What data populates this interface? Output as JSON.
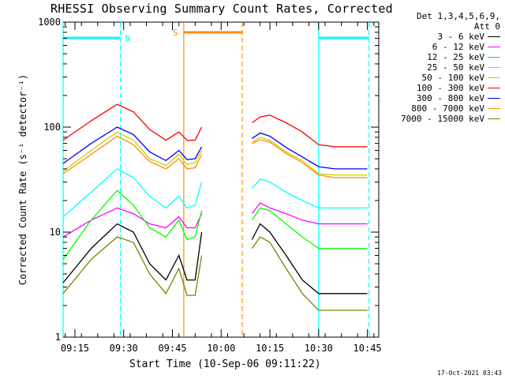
{
  "header": {
    "title": "RHESSI Observing Summary Count Rates, Corrected",
    "date_stamp": "17-Oct-2021 03:43"
  },
  "legend": {
    "header_line1": "Det 1,3,4,5,6,9,",
    "header_line2": "Att 0"
  },
  "chart_data": {
    "type": "line",
    "title": "RHESSI Observing Summary Count Rates, Corrected",
    "xlabel": "Start Time (10-Sep-06 09:11:22)",
    "ylabel": "Corrected Count Rate (s⁻¹ detector⁻¹)",
    "y_scale": "log",
    "ylim": [
      1,
      1000
    ],
    "xlim": [
      "09:11:22",
      "10:48:30"
    ],
    "y_ticks": [
      "1",
      "10",
      "100",
      "1000"
    ],
    "x_ticks": [
      "09:15",
      "09:30",
      "09:45",
      "10:00",
      "10:15",
      "10:30",
      "10:45"
    ],
    "legend_position": "right",
    "grid": false,
    "segments": [
      [
        "09:11:22",
        "09:54:00"
      ],
      [
        "10:09:30",
        "10:45:00"
      ]
    ],
    "series": [
      {
        "name": "3 - 6 keV",
        "color": "#000000",
        "x": [
          "09:11:22",
          "09:20:00",
          "09:28:00",
          "09:33:00",
          "09:38:00",
          "09:43:00",
          "09:47:00",
          "09:49:30",
          "09:52:00",
          "09:54:00",
          "09:09:30",
          "10:09:30",
          "10:12:00",
          "10:15:00",
          "10:20:00",
          "10:25:00",
          "10:30:00",
          "10:35:00",
          "10:40:00",
          "10:45:00"
        ],
        "values": [
          3.3,
          7,
          12,
          10,
          5,
          3.5,
          6,
          3.5,
          3.5,
          10,
          null,
          8.5,
          12,
          10,
          6,
          3.5,
          2.6,
          2.6,
          2.6,
          2.6
        ]
      },
      {
        "name": "6 - 12 keV",
        "color": "#ff00ff",
        "x": [
          "09:11:22",
          "09:20:00",
          "09:28:00",
          "09:33:00",
          "09:38:00",
          "09:43:00",
          "09:47:00",
          "09:49:30",
          "09:52:00",
          "09:54:00",
          "09:09:30",
          "10:09:30",
          "10:12:00",
          "10:15:00",
          "10:20:00",
          "10:25:00",
          "10:30:00",
          "10:35:00",
          "10:40:00",
          "10:45:00"
        ],
        "values": [
          9,
          13,
          17,
          15,
          12,
          11,
          14,
          11,
          11,
          15,
          null,
          15,
          19,
          17,
          15,
          13,
          12,
          12,
          12,
          12
        ]
      },
      {
        "name": "12 - 25 keV",
        "color": "#00ff00",
        "x": [
          "09:11:22",
          "09:20:00",
          "09:28:00",
          "09:33:00",
          "09:38:00",
          "09:43:00",
          "09:47:00",
          "09:49:30",
          "09:52:00",
          "09:54:00",
          "09:09:30",
          "10:09:30",
          "10:12:00",
          "10:15:00",
          "10:20:00",
          "10:25:00",
          "10:30:00",
          "10:35:00",
          "10:40:00",
          "10:45:00"
        ],
        "values": [
          5.5,
          13,
          25,
          18,
          11,
          9,
          13,
          8.5,
          9,
          16,
          null,
          13,
          17,
          16,
          12,
          9,
          7,
          7,
          7,
          7
        ]
      },
      {
        "name": "25 - 50 keV",
        "color": "#00ffff",
        "x": [
          "09:11:22",
          "09:20:00",
          "09:28:00",
          "09:33:00",
          "09:38:00",
          "09:43:00",
          "09:47:00",
          "09:49:30",
          "09:52:00",
          "09:54:00",
          "09:09:30",
          "10:09:30",
          "10:12:00",
          "10:15:00",
          "10:20:00",
          "10:25:00",
          "10:30:00",
          "10:35:00",
          "10:40:00",
          "10:45:00"
        ],
        "values": [
          14,
          24,
          40,
          33,
          22,
          17,
          22,
          17,
          18,
          30,
          null,
          26,
          32,
          30,
          24,
          20,
          17,
          17,
          17,
          17
        ]
      },
      {
        "name": "50 - 100 keV",
        "color": "#cccc00",
        "x": [
          "09:11:22",
          "09:20:00",
          "09:28:00",
          "09:33:00",
          "09:38:00",
          "09:43:00",
          "09:47:00",
          "09:49:30",
          "09:52:00",
          "09:54:00",
          "09:09:30",
          "10:09:30",
          "10:12:00",
          "10:15:00",
          "10:20:00",
          "10:25:00",
          "10:30:00",
          "10:35:00",
          "10:40:00",
          "10:45:00"
        ],
        "values": [
          38,
          60,
          90,
          75,
          50,
          43,
          55,
          44,
          46,
          60,
          null,
          72,
          80,
          75,
          58,
          48,
          36,
          35,
          35,
          35
        ]
      },
      {
        "name": "100 - 300 keV",
        "color": "#ff0000",
        "x": [
          "09:11:22",
          "09:20:00",
          "09:28:00",
          "09:33:00",
          "09:38:00",
          "09:43:00",
          "09:47:00",
          "09:49:30",
          "09:52:00",
          "09:54:00",
          "09:09:30",
          "10:09:30",
          "10:12:00",
          "10:15:00",
          "10:20:00",
          "10:25:00",
          "10:30:00",
          "10:35:00",
          "10:40:00",
          "10:45:00"
        ],
        "values": [
          75,
          115,
          165,
          140,
          95,
          75,
          90,
          75,
          75,
          100,
          null,
          110,
          125,
          130,
          110,
          90,
          68,
          65,
          65,
          65
        ]
      },
      {
        "name": "300 - 800 keV",
        "color": "#0000ff",
        "x": [
          "09:11:22",
          "09:20:00",
          "09:28:00",
          "09:33:00",
          "09:38:00",
          "09:43:00",
          "09:47:00",
          "09:49:30",
          "09:52:00",
          "09:54:00",
          "09:09:30",
          "10:09:30",
          "10:12:00",
          "10:15:00",
          "10:20:00",
          "10:25:00",
          "10:30:00",
          "10:35:00",
          "10:40:00",
          "10:45:00"
        ],
        "values": [
          45,
          70,
          100,
          85,
          58,
          48,
          60,
          49,
          50,
          65,
          null,
          78,
          88,
          82,
          64,
          52,
          42,
          40,
          40,
          40
        ]
      },
      {
        "name": "800 - 7000 keV",
        "color": "#ff8c00",
        "x": [
          "09:11:22",
          "09:20:00",
          "09:28:00",
          "09:33:00",
          "09:38:00",
          "09:43:00",
          "09:47:00",
          "09:49:30",
          "09:52:00",
          "09:54:00",
          "09:09:30",
          "10:09:30",
          "10:12:00",
          "10:15:00",
          "10:20:00",
          "10:25:00",
          "10:30:00",
          "10:35:00",
          "10:40:00",
          "10:45:00"
        ],
        "values": [
          36,
          55,
          82,
          68,
          47,
          40,
          50,
          40,
          41,
          55,
          null,
          70,
          76,
          72,
          56,
          46,
          35,
          33,
          33,
          33
        ]
      },
      {
        "name": "7000 - 15000 keV",
        "color": "#808000",
        "x": [
          "09:11:22",
          "09:20:00",
          "09:28:00",
          "09:33:00",
          "09:38:00",
          "09:43:00",
          "09:47:00",
          "09:49:30",
          "09:52:00",
          "09:54:00",
          "09:09:30",
          "10:09:30",
          "10:12:00",
          "10:15:00",
          "10:20:00",
          "10:25:00",
          "10:30:00",
          "10:35:00",
          "10:40:00",
          "10:45:00"
        ],
        "values": [
          2.6,
          5.5,
          9,
          8,
          4,
          2.6,
          4.5,
          2.5,
          2.5,
          6,
          null,
          7,
          9,
          8,
          4.5,
          2.6,
          1.8,
          1.8,
          1.8,
          1.8
        ]
      }
    ],
    "event_lines": [
      {
        "time": "09:11:22",
        "color": "#00ffff",
        "style": "solid"
      },
      {
        "time": "09:29:00",
        "color": "#00ffff",
        "style": "dashed"
      },
      {
        "time": "09:48:30",
        "color": "#ff8c00",
        "style": "solid"
      },
      {
        "time": "10:06:30",
        "color": "#ff8c00",
        "style": "dashed"
      },
      {
        "time": "10:30:00",
        "color": "#00ffff",
        "style": "solid"
      },
      {
        "time": "10:45:30",
        "color": "#00ffff",
        "style": "dashed"
      }
    ],
    "interval_bars": [
      {
        "label": "N",
        "color": "#00ffff",
        "start": "09:11:22",
        "end": "09:29:00"
      },
      {
        "label": "",
        "color": "#00ffff",
        "start": "10:30:00",
        "end": "10:45:30"
      },
      {
        "label": "S",
        "color": "#ff8c00",
        "start": "09:48:30",
        "end": "10:06:30"
      }
    ]
  }
}
